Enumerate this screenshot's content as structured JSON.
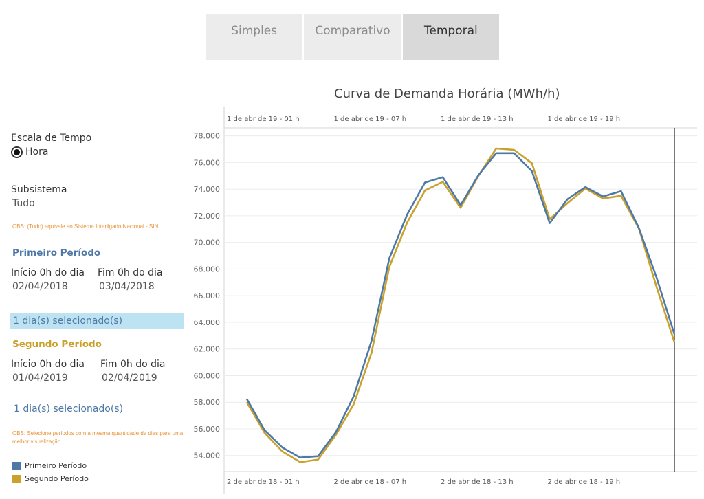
{
  "tabs": [
    {
      "label": "Simples",
      "active": false
    },
    {
      "label": "Comparativo",
      "active": false
    },
    {
      "label": "Temporal",
      "active": true
    }
  ],
  "sidebar": {
    "time_scale_label": "Escala de Tempo",
    "time_scale_option": "Hora",
    "subsystem_label": "Subsistema",
    "subsystem_value": "Tudo",
    "obs_subsystem": "OBS: (Tudo) equivale ao Sistema Interligado Nacional - SIN",
    "first_period": {
      "title": "Primeiro Período",
      "start_label": "Início 0h do dia",
      "start_value": "02/04/2018",
      "end_label": "Fim 0h do dia",
      "end_value": "03/04/2018",
      "selected_text": "1 dia(s) selecionado(s)"
    },
    "second_period": {
      "title": "Segundo Período",
      "start_label": "Início 0h do dia",
      "start_value": "01/04/2019",
      "end_label": "Fim 0h do dia",
      "end_value": "02/04/2019",
      "selected_text": "1 dia(s) selecionado(s)"
    },
    "obs_periods": "OBS: Selecione períodos com a mesma quantidade de dias para uma melhor visualização",
    "legend": [
      {
        "label": "Primeiro Período",
        "color": "#4e79a7"
      },
      {
        "label": "Segundo Período",
        "color": "#c9a12b"
      }
    ]
  },
  "chart_data": {
    "type": "line",
    "title": "Curva de Demanda Horária (MWh/h)",
    "x": [
      1,
      2,
      3,
      4,
      5,
      6,
      7,
      8,
      9,
      10,
      11,
      12,
      13,
      14,
      15,
      16,
      17,
      18,
      19,
      20,
      21,
      22,
      23,
      24,
      25
    ],
    "top_axis_ticks": [
      "1 de abr de 19 - 01 h",
      "1 de abr de 19 - 07 h",
      "1 de abr de 19 - 13 h",
      "1 de abr de 19 - 19 h"
    ],
    "bottom_axis_ticks": [
      "2 de abr de 18 - 01 h",
      "2 de abr de 18 - 07 h",
      "2 de abr de 18 - 13 h",
      "2 de abr de 18 - 19 h"
    ],
    "y_ticks": [
      "54.000",
      "56.000",
      "58.000",
      "60.000",
      "62.000",
      "64.000",
      "66.000",
      "68.000",
      "70.000",
      "72.000",
      "74.000",
      "76.000",
      "78.000"
    ],
    "ylim": [
      52800,
      78600
    ],
    "grid": true,
    "series": [
      {
        "name": "Primeiro Período",
        "color": "#4e79a7",
        "values": [
          58250,
          55900,
          54600,
          53850,
          53950,
          55750,
          58450,
          62600,
          68800,
          72100,
          74500,
          74900,
          72800,
          75050,
          76700,
          76700,
          75350,
          71450,
          73250,
          74150,
          73450,
          73850,
          71100,
          67350,
          63100
        ]
      },
      {
        "name": "Segundo Período",
        "color": "#c9a12b",
        "values": [
          58000,
          55700,
          54300,
          53500,
          53700,
          55550,
          57850,
          61700,
          68150,
          71500,
          73900,
          74550,
          72600,
          75000,
          77050,
          76950,
          75950,
          71750,
          72950,
          74050,
          73300,
          73500,
          71050,
          66650,
          62500
        ]
      }
    ]
  }
}
